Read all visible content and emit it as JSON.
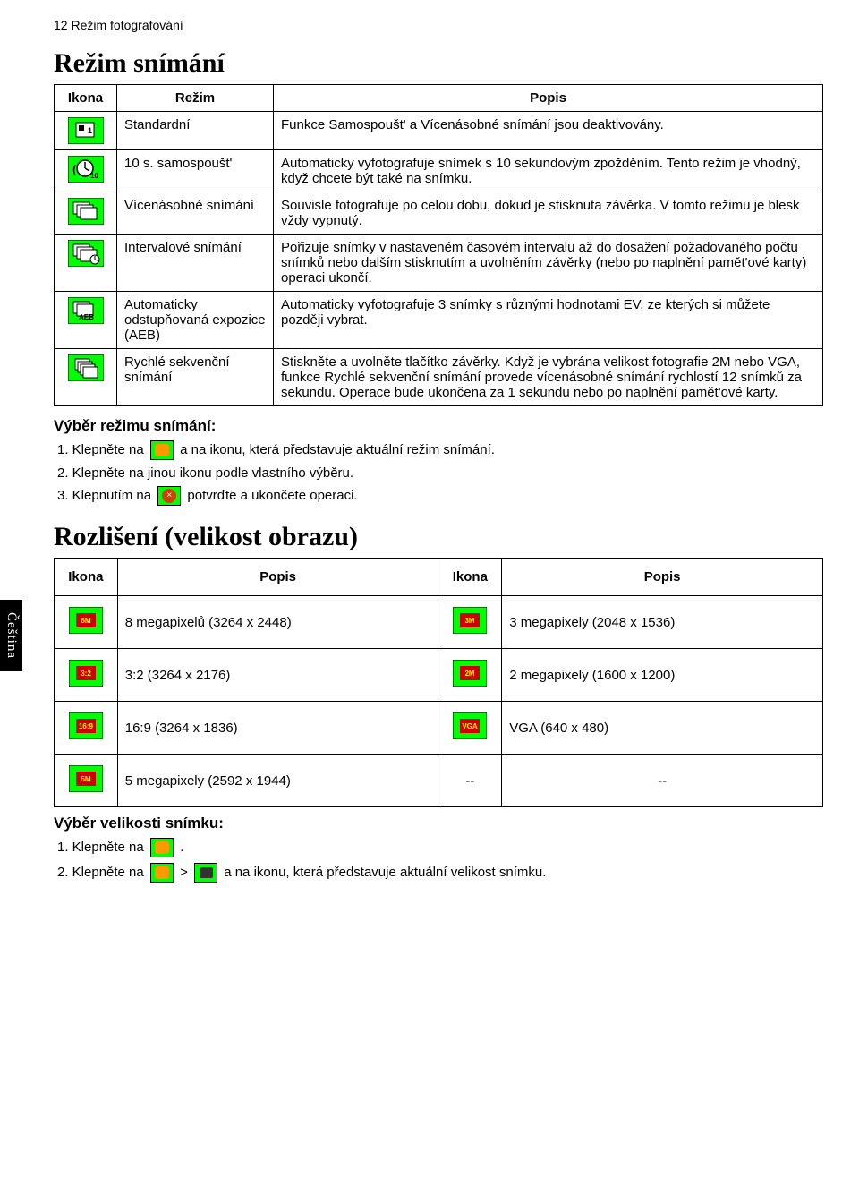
{
  "header": "12  Režim fotografování",
  "title1": "Režim snímání",
  "sidebar_label": "Čeština",
  "table1": {
    "headers": [
      "Ikona",
      "Režim",
      "Popis"
    ],
    "rows": [
      {
        "icon": "single",
        "mode": "Standardní",
        "desc": "Funkce Samospoušt' a Vícenásobné snímání jsou deaktivovány."
      },
      {
        "icon": "timer",
        "mode": "10 s. samospoušt'",
        "desc": "Automaticky vyfotografuje snímek s 10 sekundovým zpožděním. Tento režim je vhodný, když chcete být také na snímku."
      },
      {
        "icon": "multi",
        "mode": "Vícenásobné snímání",
        "desc": "Souvisle fotografuje po celou dobu, dokud je stisknuta závěrka. V tomto režimu je blesk vždy vypnutý."
      },
      {
        "icon": "interval",
        "mode": "Intervalové snímání",
        "desc": "Pořizuje snímky v nastaveném časovém intervalu až do dosažení požadovaného počtu snímků nebo dalším stisknutím a uvolněním závěrky (nebo po naplnění pamět'ové karty) operaci ukončí."
      },
      {
        "icon": "aeb",
        "mode": "Automaticky odstupňovaná expozice (AEB)",
        "desc": "Automaticky vyfotografuje 3 snímky s různými hodnotami EV, ze kterých si můžete později vybrat."
      },
      {
        "icon": "fast",
        "mode": "Rychlé sekvenční snímání",
        "desc": "Stiskněte a uvolněte tlačítko závěrky. Když je vybrána velikost fotografie 2M nebo VGA, funkce Rychlé sekvenční snímání provede vícenásobné snímání rychlostí 12 snímků za sekundu. Operace bude ukončena za 1 sekundu nebo po naplnění pamět'ové karty."
      }
    ]
  },
  "sub1": "Výběr režimu snímání:",
  "steps1": {
    "s1a": "1.   Klepněte na",
    "s1b": "a na ikonu, která představuje aktuální režim snímání.",
    "s2": "2.   Klepněte na jinou ikonu podle vlastního výběru.",
    "s3a": "3.   Klepnutím na",
    "s3b": "potvrďte a ukončete operaci."
  },
  "title2": "Rozlišení (velikost obrazu)",
  "table2": {
    "headers": [
      "Ikona",
      "Popis",
      "Ikona",
      "Popis"
    ],
    "rows": [
      {
        "ic1": "8M",
        "d1": "8 megapixelů (3264 x 2448)",
        "ic2": "3M",
        "d2": "3 megapixely (2048 x 1536)"
      },
      {
        "ic1": "3:2",
        "d1": "3:2 (3264 x 2176)",
        "ic2": "2M",
        "d2": "2 megapixely (1600 x 1200)"
      },
      {
        "ic1": "16:9",
        "d1": "16:9 (3264 x 1836)",
        "ic2": "VGA",
        "d2": "VGA (640 x 480)"
      },
      {
        "ic1": "5M",
        "d1": "5 megapixely (2592 x 1944)",
        "ic2": "--",
        "d2": "--",
        "no_icon2": true
      }
    ]
  },
  "sub2": "Výběr velikosti snímku:",
  "steps2": {
    "s1a": "1.   Klepněte na",
    "s1b": ".",
    "s2a": "2.   Klepněte na",
    "s2b": ">",
    "s2c": "a na ikonu, která představuje aktuální velikost snímku."
  }
}
